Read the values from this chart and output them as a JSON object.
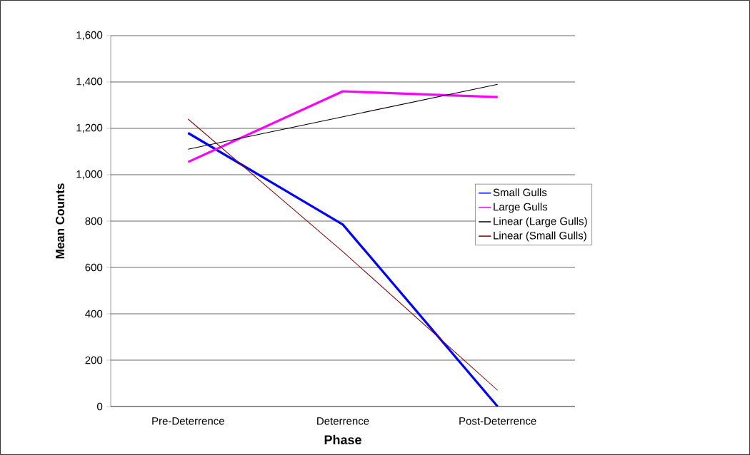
{
  "chart_data": {
    "type": "line",
    "xlabel": "Phase",
    "ylabel": "Mean Counts",
    "categories": [
      "Pre-Deterrence",
      "Deterrence",
      "Post-Deterrence"
    ],
    "series": [
      {
        "name": "Small Gulls",
        "color": "#0000ff",
        "values": [
          1180,
          785,
          0
        ]
      },
      {
        "name": "Large Gulls",
        "color": "#ff00ff",
        "values": [
          1055,
          1360,
          1335
        ]
      },
      {
        "name": "Linear (Large Gulls)",
        "color": "#000000",
        "type": "line",
        "values": [
          1110,
          1250,
          1390
        ]
      },
      {
        "name": "Linear (Small Gulls)",
        "color": "#800000",
        "type": "line",
        "values": [
          1240,
          668,
          70
        ]
      }
    ],
    "ylim": [
      0,
      1600
    ],
    "yticks": [
      0,
      200,
      400,
      600,
      800,
      {
        "value": 1000,
        "label": "1,000"
      },
      {
        "value": 1200,
        "label": "1,200"
      },
      {
        "value": 1400,
        "label": "1,400"
      },
      {
        "value": 1600,
        "label": "1,600"
      }
    ],
    "grid": "y",
    "legend": "right",
    "marker": "none",
    "line_style": "solid"
  }
}
